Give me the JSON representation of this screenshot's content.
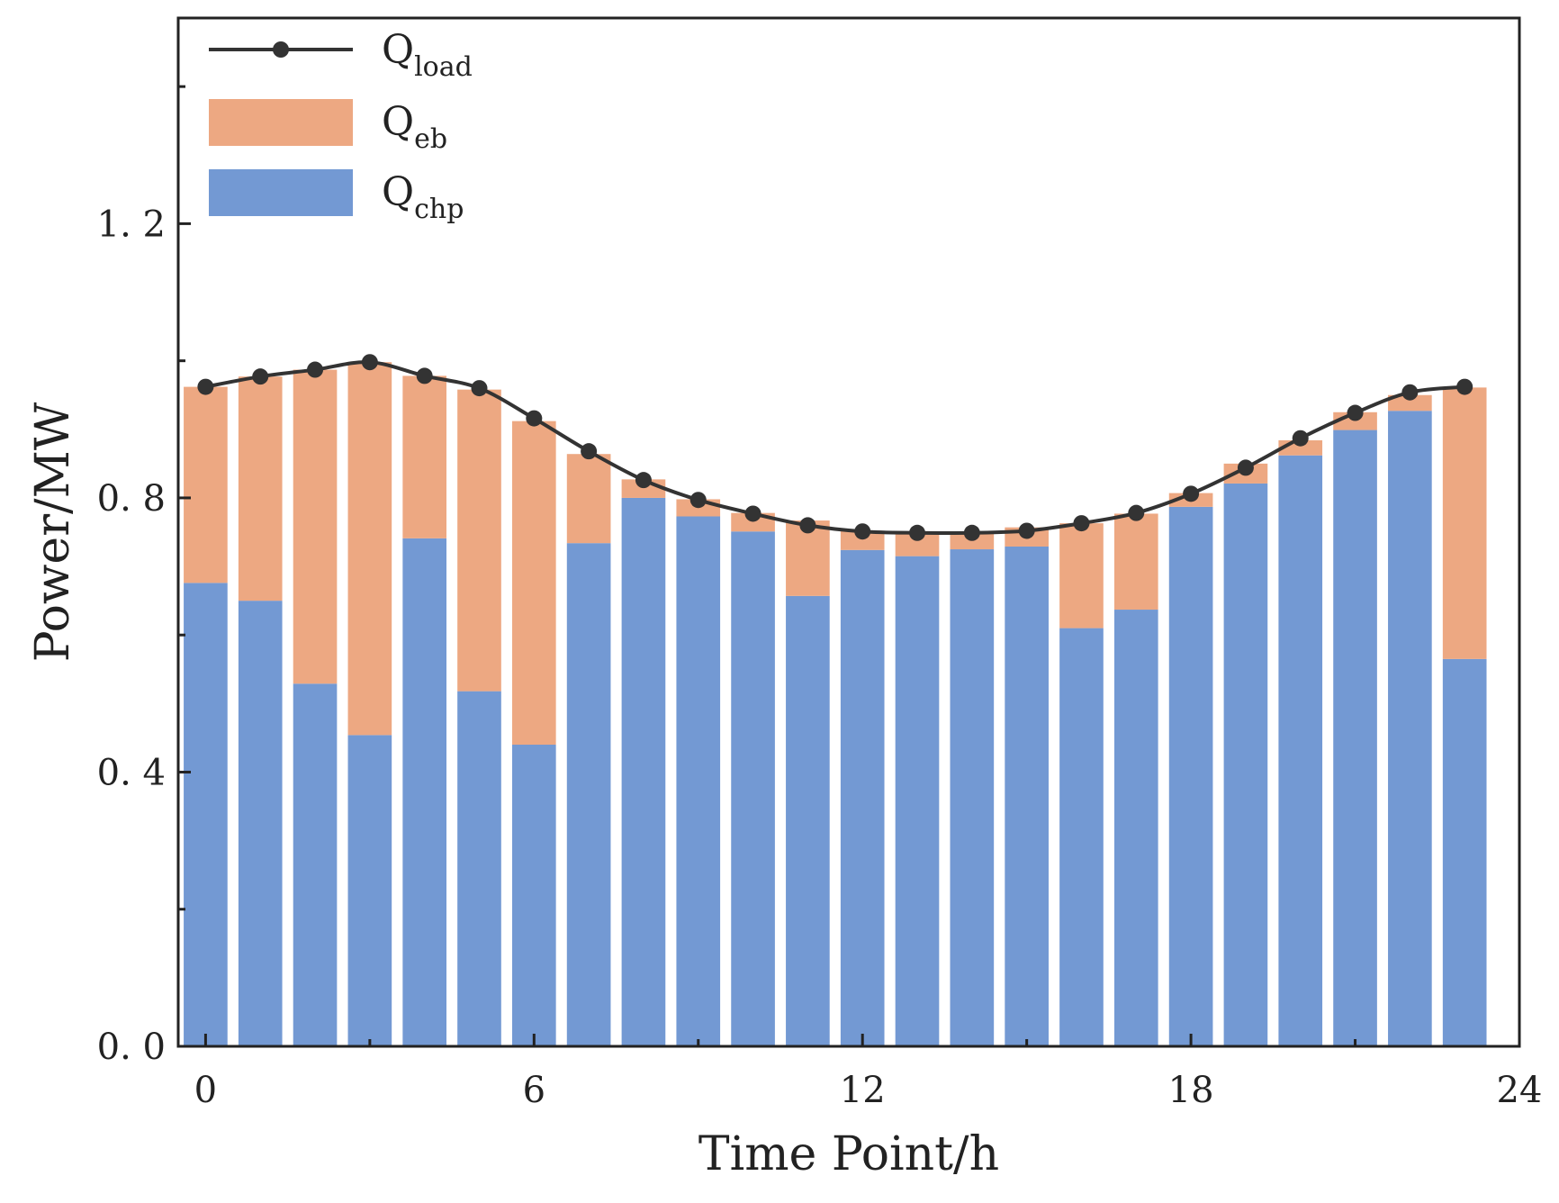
{
  "chart_data": {
    "type": "bar",
    "stacked": true,
    "xlabel": "Time Point/h",
    "ylabel": "Power/MW",
    "xlim": [
      -0.5,
      24
    ],
    "ylim": [
      0,
      1.5
    ],
    "xticks": [
      0,
      6,
      12,
      18,
      24
    ],
    "xtick_labels": [
      "0",
      "6",
      "12",
      "18",
      "24"
    ],
    "yticks": [
      0.0,
      0.4,
      0.8,
      1.2
    ],
    "ytick_labels": [
      "0. 0",
      "0. 4",
      "0. 8",
      "1. 2"
    ],
    "y_minor_ticks": [
      0.2,
      0.6,
      1.0,
      1.4
    ],
    "x": [
      0,
      1,
      2,
      3,
      4,
      5,
      6,
      7,
      8,
      9,
      10,
      11,
      12,
      13,
      14,
      15,
      16,
      17,
      18,
      19,
      20,
      21,
      22,
      23
    ],
    "series": [
      {
        "name": "Q_chp",
        "legend_main": "Q",
        "legend_sub": "chp",
        "kind": "bar",
        "color": "#7399d3",
        "values": [
          0.676,
          0.65,
          0.529,
          0.454,
          0.741,
          0.518,
          0.44,
          0.734,
          0.8,
          0.773,
          0.751,
          0.657,
          0.724,
          0.715,
          0.725,
          0.729,
          0.61,
          0.637,
          0.787,
          0.821,
          0.862,
          0.899,
          0.927,
          0.565
        ]
      },
      {
        "name": "Q_eb",
        "legend_main": "Q",
        "legend_sub": "eb",
        "kind": "bar",
        "color": "#eda882",
        "values": [
          0.286,
          0.327,
          0.458,
          0.544,
          0.237,
          0.44,
          0.472,
          0.13,
          0.027,
          0.025,
          0.027,
          0.11,
          0.028,
          0.035,
          0.023,
          0.028,
          0.153,
          0.14,
          0.02,
          0.029,
          0.022,
          0.026,
          0.023,
          0.396
        ]
      },
      {
        "name": "Q_load",
        "legend_main": "Q",
        "legend_sub": "load",
        "kind": "line",
        "color": "#333333",
        "values": [
          0.962,
          0.977,
          0.987,
          0.998,
          0.978,
          0.96,
          0.916,
          0.868,
          0.826,
          0.797,
          0.777,
          0.76,
          0.751,
          0.749,
          0.749,
          0.752,
          0.763,
          0.778,
          0.806,
          0.844,
          0.887,
          0.924,
          0.954,
          0.962
        ]
      }
    ]
  }
}
